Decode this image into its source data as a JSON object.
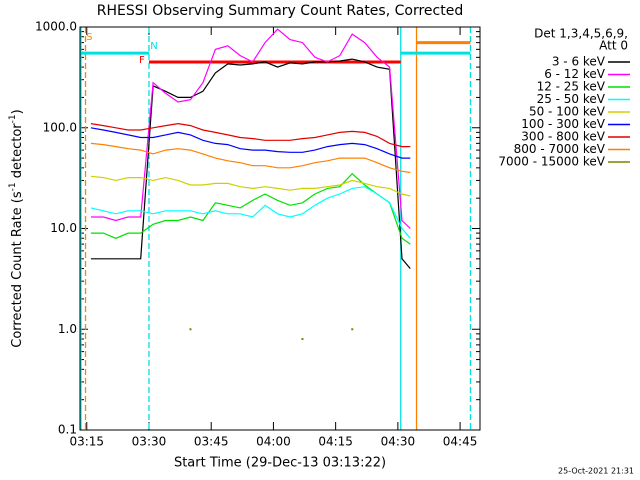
{
  "chart_data": {
    "type": "line",
    "title": "RHESSI Observing Summary Count Rates, Corrected",
    "xlabel": "Start Time (29-Dec-13 03:13:22)",
    "ylabel_parts": [
      "Corrected Count Rate (s",
      "-1",
      " detector",
      "-1",
      ")"
    ],
    "legend_header": [
      "Det 1,3,4,5,6,9,",
      "Att 0"
    ],
    "footer": "25-Oct-2021 21:31",
    "log_y": true,
    "xlim": [
      193.37,
      289.8
    ],
    "ylim": [
      0.1,
      1000
    ],
    "xticks": [
      {
        "value": 195,
        "label": "03:15"
      },
      {
        "value": 210,
        "label": "03:30"
      },
      {
        "value": 225,
        "label": "03:45"
      },
      {
        "value": 240,
        "label": "04:00"
      },
      {
        "value": 255,
        "label": "04:15"
      },
      {
        "value": 270,
        "label": "04:30"
      },
      {
        "value": 285,
        "label": "04:45"
      }
    ],
    "yticks": [
      {
        "value": 0.1,
        "label": "0.1"
      },
      {
        "value": 1,
        "label": "1.0"
      },
      {
        "value": 10,
        "label": "10.0"
      },
      {
        "value": 100,
        "label": "100.0"
      },
      {
        "value": 1000,
        "label": "1000.0"
      }
    ],
    "x": [
      196,
      199,
      202,
      205,
      208,
      211,
      214,
      217,
      220,
      223,
      226,
      229,
      232,
      235,
      238,
      241,
      244,
      247,
      250,
      253,
      256,
      259,
      262,
      265,
      268,
      271,
      273
    ],
    "series": [
      {
        "name": "3 - 6 keV",
        "color": "#000000",
        "values": [
          5,
          5,
          5,
          5,
          5,
          260,
          230,
          200,
          200,
          230,
          350,
          430,
          420,
          430,
          450,
          400,
          440,
          430,
          450,
          450,
          460,
          480,
          450,
          400,
          380,
          5,
          4
        ]
      },
      {
        "name": "6 - 12 keV",
        "color": "#ff00ff",
        "values": [
          13,
          13,
          12,
          13,
          13,
          280,
          220,
          180,
          190,
          280,
          600,
          650,
          520,
          450,
          700,
          950,
          750,
          700,
          500,
          450,
          520,
          850,
          700,
          500,
          400,
          12,
          10
        ]
      },
      {
        "name": "12 - 25 keV",
        "color": "#00e000",
        "values": [
          9,
          9,
          8,
          9,
          9,
          11,
          12,
          12,
          13,
          12,
          18,
          17,
          16,
          19,
          22,
          19,
          17,
          18,
          22,
          25,
          26,
          35,
          27,
          22,
          18,
          8,
          7
        ]
      },
      {
        "name": "25 - 50 keV",
        "color": "#00ffff",
        "values": [
          16,
          15,
          14,
          15,
          15,
          14,
          15,
          15,
          15,
          14,
          15,
          14,
          14,
          13,
          17,
          14,
          13,
          14,
          17,
          20,
          22,
          25,
          26,
          22,
          18,
          10,
          8
        ]
      },
      {
        "name": "50 - 100 keV",
        "color": "#d0d000",
        "values": [
          33,
          32,
          30,
          32,
          32,
          30,
          32,
          30,
          27,
          27,
          28,
          28,
          26,
          25,
          26,
          25,
          24,
          25,
          25,
          26,
          27,
          30,
          28,
          26,
          25,
          22,
          21
        ]
      },
      {
        "name": "100 - 300 keV",
        "color": "#0000ff",
        "values": [
          100,
          95,
          90,
          85,
          80,
          80,
          85,
          90,
          85,
          75,
          70,
          68,
          62,
          60,
          60,
          58,
          57,
          57,
          60,
          65,
          68,
          70,
          68,
          62,
          55,
          50,
          50
        ]
      },
      {
        "name": "300 - 800 keV",
        "color": "#e00000",
        "values": [
          110,
          105,
          100,
          95,
          95,
          100,
          105,
          110,
          105,
          95,
          90,
          85,
          80,
          78,
          75,
          75,
          75,
          78,
          80,
          85,
          90,
          92,
          90,
          82,
          70,
          65,
          65
        ]
      },
      {
        "name": "800 - 7000 keV",
        "color": "#ff8000",
        "values": [
          70,
          68,
          65,
          62,
          60,
          55,
          60,
          62,
          60,
          55,
          50,
          47,
          45,
          42,
          42,
          40,
          40,
          42,
          45,
          47,
          50,
          50,
          50,
          45,
          40,
          37,
          36
        ]
      },
      {
        "name": "7000 - 15000 keV",
        "color": "#808000",
        "values": [
          null,
          null,
          null,
          null,
          null,
          null,
          null,
          null,
          1,
          null,
          null,
          null,
          null,
          null,
          null,
          null,
          null,
          0.8,
          null,
          null,
          null,
          1,
          null,
          null,
          null,
          null,
          null
        ]
      }
    ],
    "intervals": [
      {
        "color": "#00e0e0",
        "start": 193.4,
        "end": 210,
        "level": 550
      },
      {
        "color": "#ff0000",
        "start": 210,
        "end": 270.7,
        "level": 450
      },
      {
        "color": "#00e0e0",
        "start": 270.7,
        "end": 287.5,
        "level": 550
      },
      {
        "color": "#ff8000",
        "start": 274.5,
        "end": 287.5,
        "level": 700
      }
    ],
    "vlines": [
      {
        "x": 193.6,
        "color": "#00e0e0",
        "dashed": false
      },
      {
        "x": 194.7,
        "color": "#ff8000",
        "dashed": true
      },
      {
        "x": 210,
        "color": "#00e0e0",
        "dashed": true
      },
      {
        "x": 270.7,
        "color": "#00e0e0",
        "dashed": false
      },
      {
        "x": 274.5,
        "color": "#ff8000",
        "dashed": false
      },
      {
        "x": 287.5,
        "color": "#00e0e0",
        "dashed": true
      }
    ],
    "annotations": [
      {
        "text": "S",
        "color": "#ff8000",
        "x": 195.6,
        "y": 800
      },
      {
        "text": "N",
        "color": "#00e0e0",
        "x": 211.2,
        "y": 650
      },
      {
        "text": "F",
        "color": "#ff0000",
        "x": 208.3,
        "y": 470
      }
    ]
  }
}
